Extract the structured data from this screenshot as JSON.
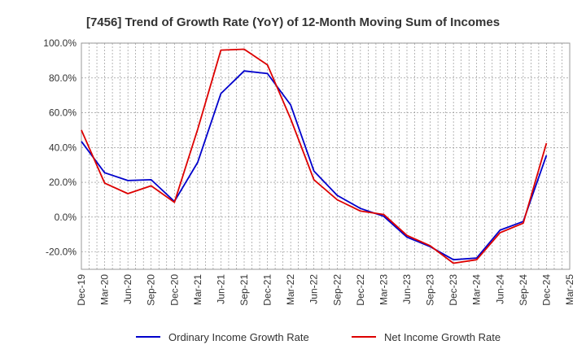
{
  "chart_data": {
    "type": "line",
    "title": "[7456]  Trend of Growth Rate (YoY) of 12-Month Moving Sum of Incomes",
    "xlabel": "",
    "ylabel": "",
    "ylim": [
      -30,
      100
    ],
    "grid": true,
    "legend_position": "bottom",
    "y_tick_values": [
      -20,
      0,
      20,
      40,
      60,
      80,
      100
    ],
    "y_tick_labels": [
      "-20.0%",
      "0.0%",
      "20.0%",
      "40.0%",
      "60.0%",
      "80.0%",
      "100.0%"
    ],
    "x_tick_labels": [
      "Dec-19",
      "Mar-20",
      "Jun-20",
      "Sep-20",
      "Dec-20",
      "Mar-21",
      "Jun-21",
      "Sep-21",
      "Dec-21",
      "Mar-22",
      "Jun-22",
      "Sep-22",
      "Dec-22",
      "Mar-23",
      "Jun-23",
      "Sep-23",
      "Dec-23",
      "Mar-24",
      "Jun-24",
      "Sep-24",
      "Dec-24",
      "Mar-25"
    ],
    "categories": [
      "Dec-19",
      "Mar-20",
      "Jun-20",
      "Sep-20",
      "Dec-20",
      "Mar-21",
      "Jun-21",
      "Sep-21",
      "Dec-21",
      "Mar-22",
      "Jun-22",
      "Sep-22",
      "Dec-22",
      "Mar-23",
      "Jun-23",
      "Sep-23",
      "Dec-23",
      "Mar-24",
      "Jun-24",
      "Sep-24",
      "Dec-24",
      "Mar-25"
    ],
    "series": [
      {
        "name": "Ordinary Income Growth Rate",
        "color": "#0000cc",
        "values": [
          43.5,
          25.5,
          21.0,
          21.5,
          9.0,
          31.5,
          71.0,
          84.0,
          82.5,
          64.5,
          26.5,
          12.5,
          5.0,
          0.5,
          -11.5,
          -17.0,
          -24.5,
          -23.5,
          -7.5,
          -2.5,
          35.5,
          null
        ]
      },
      {
        "name": "Net Income Growth Rate",
        "color": "#dd0000",
        "values": [
          50.0,
          19.5,
          13.5,
          18.0,
          8.5,
          50.5,
          96.0,
          96.5,
          87.5,
          56.5,
          21.5,
          10.0,
          3.5,
          1.5,
          -10.5,
          -16.5,
          -26.5,
          -24.5,
          -9.0,
          -3.5,
          42.5,
          null
        ]
      }
    ]
  }
}
